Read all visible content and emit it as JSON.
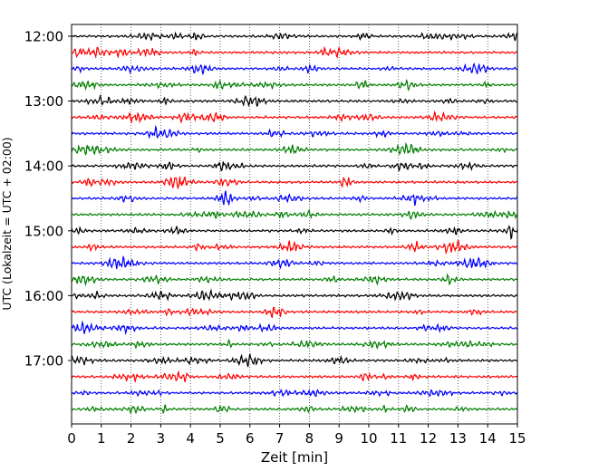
{
  "chart_data": {
    "type": "line",
    "title": "",
    "xlabel": "Zeit  [min]",
    "ylabel": "UTC (Lokalzeit = UTC + 02:00)",
    "xlim": [
      0,
      15
    ],
    "x_ticks": [
      "0",
      "1",
      "2",
      "3",
      "4",
      "5",
      "6",
      "7",
      "8",
      "9",
      "10",
      "11",
      "12",
      "13",
      "14",
      "15"
    ],
    "y_tick_labels": [
      "12:00",
      "13:00",
      "14:00",
      "15:00",
      "16:00",
      "17:00"
    ],
    "grid": "vertical dotted",
    "trace_colors": [
      "#000000",
      "#ff0000",
      "#0000ff",
      "#007f00"
    ],
    "trace_count": 24,
    "traces": [
      {
        "start": "12:00",
        "color": "#000000"
      },
      {
        "start": "12:15",
        "color": "#ff0000"
      },
      {
        "start": "12:30",
        "color": "#0000ff"
      },
      {
        "start": "12:45",
        "color": "#007f00"
      },
      {
        "start": "13:00",
        "color": "#000000"
      },
      {
        "start": "13:15",
        "color": "#ff0000"
      },
      {
        "start": "13:30",
        "color": "#0000ff"
      },
      {
        "start": "13:45",
        "color": "#007f00"
      },
      {
        "start": "14:00",
        "color": "#000000"
      },
      {
        "start": "14:15",
        "color": "#ff0000"
      },
      {
        "start": "14:30",
        "color": "#0000ff"
      },
      {
        "start": "14:45",
        "color": "#007f00"
      },
      {
        "start": "15:00",
        "color": "#000000"
      },
      {
        "start": "15:15",
        "color": "#ff0000"
      },
      {
        "start": "15:30",
        "color": "#0000ff"
      },
      {
        "start": "15:45",
        "color": "#007f00"
      },
      {
        "start": "16:00",
        "color": "#000000"
      },
      {
        "start": "16:15",
        "color": "#ff0000"
      },
      {
        "start": "16:30",
        "color": "#0000ff"
      },
      {
        "start": "16:45",
        "color": "#007f00"
      },
      {
        "start": "17:00",
        "color": "#000000"
      },
      {
        "start": "17:15",
        "color": "#ff0000"
      },
      {
        "start": "17:30",
        "color": "#0000ff"
      },
      {
        "start": "17:45",
        "color": "#007f00"
      }
    ]
  }
}
